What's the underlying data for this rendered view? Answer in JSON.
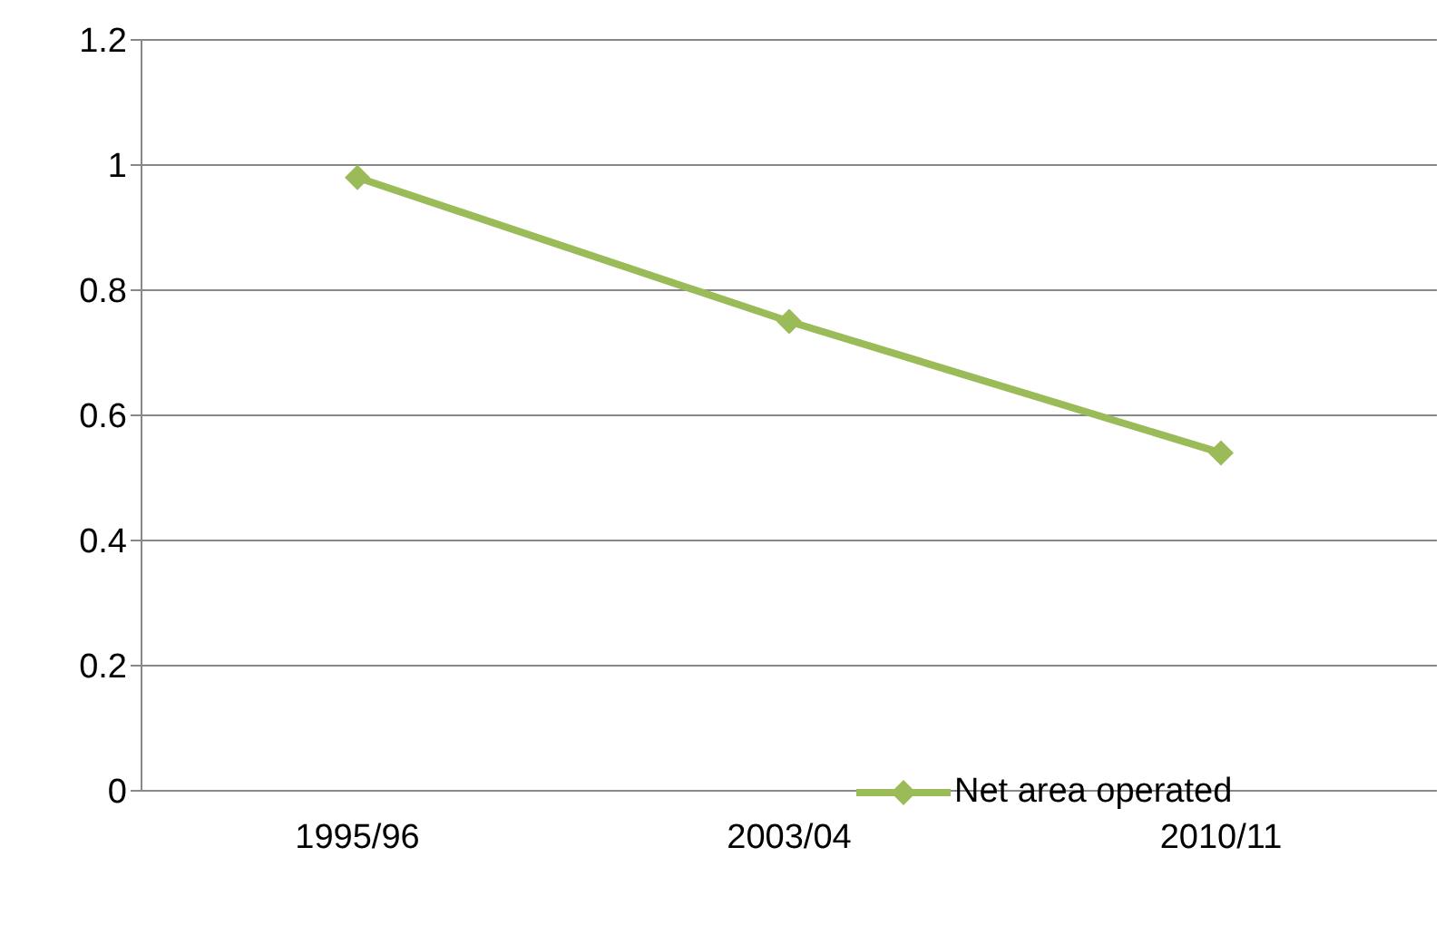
{
  "chart_data": {
    "type": "line",
    "categories": [
      "1995/96",
      "2003/04",
      "2010/11"
    ],
    "series": [
      {
        "name": "Net area operated",
        "color": "#9bbb59",
        "values": [
          0.98,
          0.75,
          0.54
        ]
      }
    ],
    "ylim": [
      0,
      1.2
    ],
    "yticks": [
      0,
      0.2,
      0.4,
      0.6,
      0.8,
      1,
      1.2
    ],
    "grid": "y",
    "legend": "bottom right",
    "marker": "diamond",
    "line_style": "solid"
  }
}
